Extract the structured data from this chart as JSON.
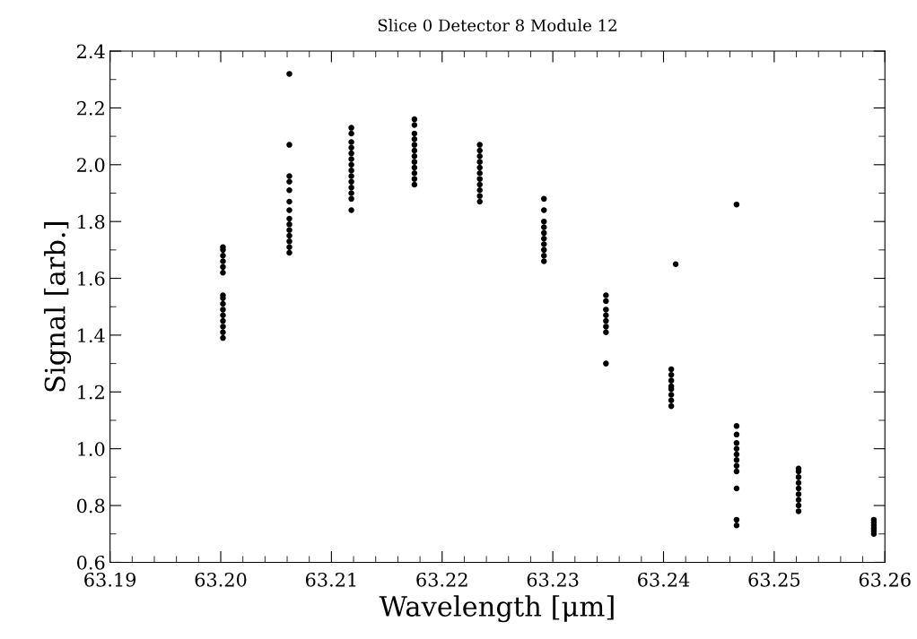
{
  "chart_data": {
    "type": "scatter",
    "title": "Slice 0 Detector 8 Module 12",
    "xlabel": "Wavelength [μm]",
    "ylabel": "Signal [arb.]",
    "xlim": [
      63.19,
      63.26
    ],
    "ylim": [
      0.6,
      2.4
    ],
    "xticks": [
      63.19,
      {
        "value": 63.2,
        "label": "63.20"
      },
      63.21,
      63.22,
      63.23,
      63.24,
      63.25,
      {
        "value": 63.26,
        "label": "63.26"
      }
    ],
    "yticks": [
      0.6,
      0.8,
      {
        "value": 1.0,
        "label": "1.0"
      },
      1.2,
      1.4,
      1.6,
      1.8,
      {
        "value": 2.0,
        "label": "2.0"
      },
      2.2,
      2.4
    ],
    "grid": false,
    "marker": "circle",
    "series": [
      {
        "color": "#000000",
        "x": [
          63.2002,
          63.2002,
          63.2002,
          63.2002,
          63.2002,
          63.2002,
          63.2002,
          63.2002,
          63.2002,
          63.2002,
          63.2002,
          63.2002,
          63.2002,
          63.2002,
          63.2002,
          63.2062,
          63.2062,
          63.2062,
          63.2062,
          63.2062,
          63.2062,
          63.2062,
          63.2062,
          63.2062,
          63.2062,
          63.2062,
          63.2062,
          63.2062,
          63.2062,
          63.2118,
          63.2118,
          63.2118,
          63.2118,
          63.2118,
          63.2118,
          63.2118,
          63.2118,
          63.2118,
          63.2118,
          63.2118,
          63.2118,
          63.2118,
          63.2118,
          63.2175,
          63.2175,
          63.2175,
          63.2175,
          63.2175,
          63.2175,
          63.2175,
          63.2175,
          63.2175,
          63.2175,
          63.2175,
          63.2175,
          63.2234,
          63.2234,
          63.2234,
          63.2234,
          63.2234,
          63.2234,
          63.2234,
          63.2234,
          63.2234,
          63.2234,
          63.2234,
          63.2292,
          63.2292,
          63.2292,
          63.2292,
          63.2292,
          63.2292,
          63.2292,
          63.2292,
          63.2292,
          63.2292,
          63.2348,
          63.2348,
          63.2348,
          63.2348,
          63.2348,
          63.2348,
          63.2348,
          63.2348,
          63.2407,
          63.2407,
          63.2407,
          63.2407,
          63.2407,
          63.2407,
          63.2407,
          63.2407,
          63.2411,
          63.2466,
          63.2466,
          63.2466,
          63.2466,
          63.2466,
          63.2466,
          63.2466,
          63.2466,
          63.2466,
          63.2466,
          63.2466,
          63.2466,
          63.2522,
          63.2522,
          63.2522,
          63.2522,
          63.2522,
          63.2522,
          63.2522,
          63.2522,
          63.2522,
          63.259,
          63.259,
          63.259,
          63.259,
          63.259,
          63.259
        ],
        "values": [
          1.39,
          1.41,
          1.43,
          1.45,
          1.47,
          1.49,
          1.51,
          1.53,
          1.54,
          1.62,
          1.64,
          1.66,
          1.68,
          1.7,
          1.71,
          1.69,
          1.71,
          1.73,
          1.75,
          1.77,
          1.79,
          1.81,
          1.84,
          1.87,
          1.91,
          1.94,
          1.96,
          2.07,
          2.32,
          1.84,
          1.88,
          1.9,
          1.92,
          1.94,
          1.96,
          1.98,
          2.0,
          2.02,
          2.04,
          2.06,
          2.08,
          2.11,
          2.13,
          1.93,
          1.95,
          1.97,
          1.99,
          2.01,
          2.03,
          2.05,
          2.07,
          2.09,
          2.11,
          2.14,
          2.16,
          1.87,
          1.89,
          1.91,
          1.93,
          1.95,
          1.97,
          1.99,
          2.01,
          2.03,
          2.05,
          2.07,
          1.66,
          1.68,
          1.7,
          1.72,
          1.74,
          1.76,
          1.78,
          1.8,
          1.84,
          1.88,
          1.3,
          1.41,
          1.43,
          1.45,
          1.47,
          1.49,
          1.52,
          1.54,
          1.15,
          1.17,
          1.19,
          1.21,
          1.22,
          1.24,
          1.26,
          1.28,
          1.65,
          0.73,
          0.75,
          0.86,
          0.92,
          0.94,
          0.96,
          0.98,
          1.0,
          1.02,
          1.05,
          1.08,
          1.86,
          0.78,
          0.8,
          0.82,
          0.84,
          0.86,
          0.88,
          0.9,
          0.92,
          0.93,
          0.7,
          0.71,
          0.72,
          0.73,
          0.74,
          0.75
        ]
      }
    ]
  }
}
